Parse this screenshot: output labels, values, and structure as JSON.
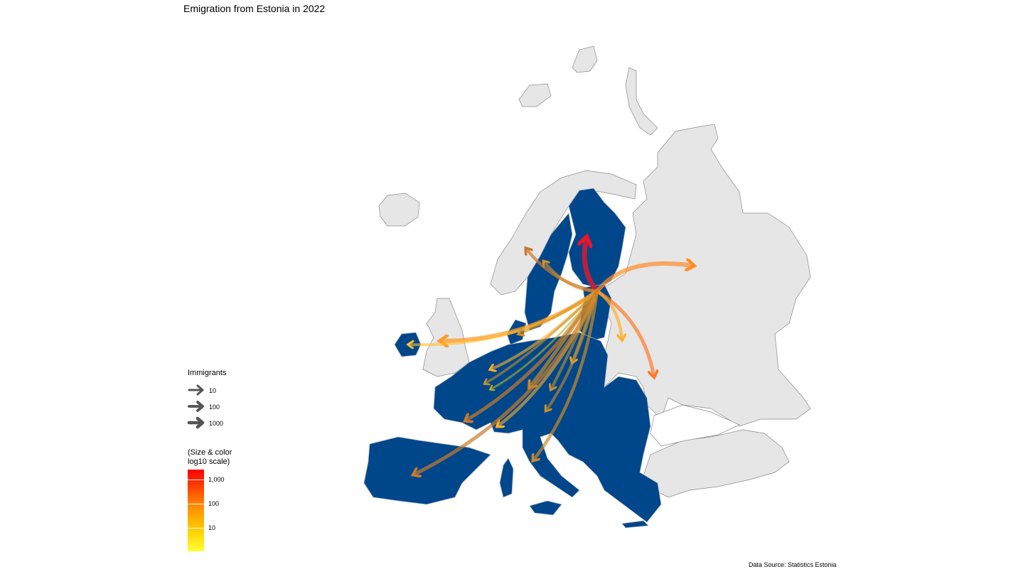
{
  "title": "Emigration from Estonia in 2022",
  "caption": "Data Source: Statistics Estonia",
  "legend": {
    "size_title": "Immigrants",
    "size_items": [
      {
        "label": "10"
      },
      {
        "label": "100"
      },
      {
        "label": "1000"
      }
    ],
    "color_title": "(Size & color\nlog10 scale)",
    "color_ticks": [
      {
        "label": "1,000"
      },
      {
        "label": "100"
      },
      {
        "label": "10"
      }
    ]
  },
  "colors": {
    "eu_country": "#00468b",
    "other_country": "#e6e6e6",
    "border": "#8a8a8a",
    "scale_low": "#ffff33",
    "scale_mid": "#ff9900",
    "scale_high": "#ff0000"
  },
  "origin": "Estonia"
}
